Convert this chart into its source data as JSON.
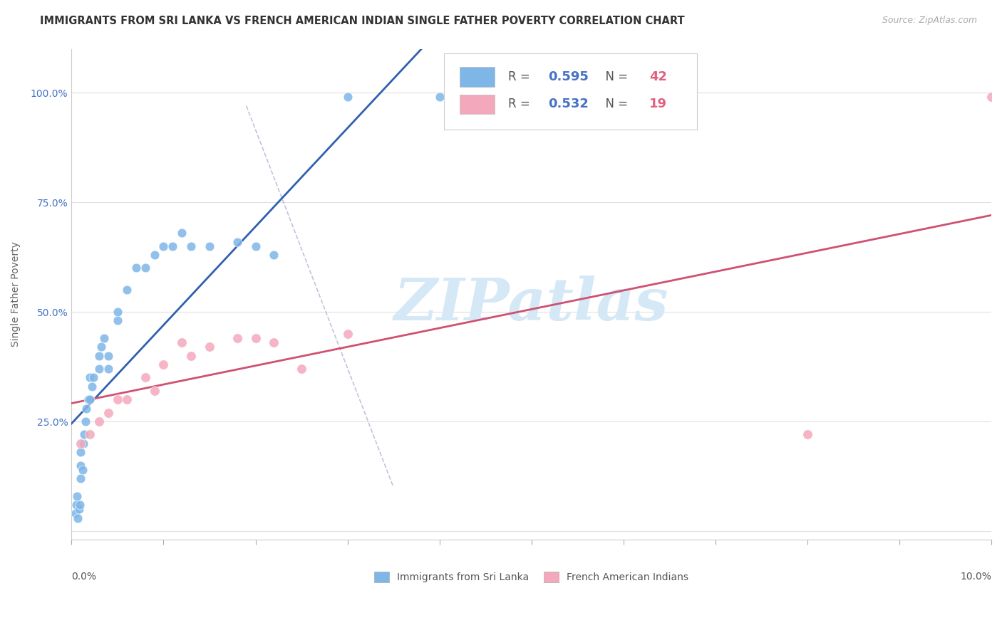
{
  "title": "IMMIGRANTS FROM SRI LANKA VS FRENCH AMERICAN INDIAN SINGLE FATHER POVERTY CORRELATION CHART",
  "source": "Source: ZipAtlas.com",
  "ylabel": "Single Father Poverty",
  "xlim": [
    0.0,
    0.1
  ],
  "ylim": [
    -0.02,
    1.1
  ],
  "blue_R": 0.595,
  "blue_N": 42,
  "pink_R": 0.532,
  "pink_N": 19,
  "blue_color": "#7EB6E8",
  "pink_color": "#F4A8BC",
  "blue_trend_color": "#3060b0",
  "pink_trend_color": "#d05070",
  "blue_label": "Immigrants from Sri Lanka",
  "pink_label": "French American Indians",
  "legend_value_color": "#4472c4",
  "legend_n_color": "#e06080",
  "watermark": "ZIPatlas",
  "watermark_color": "#d5e8f5",
  "background_color": "#ffffff",
  "grid_color": "#e0e0e0",
  "blue_scatter_x": [
    0.0004,
    0.0005,
    0.0006,
    0.0007,
    0.0008,
    0.0009,
    0.001,
    0.001,
    0.001,
    0.0012,
    0.0013,
    0.0014,
    0.0015,
    0.0016,
    0.0018,
    0.002,
    0.002,
    0.0022,
    0.0024,
    0.003,
    0.003,
    0.0032,
    0.0035,
    0.004,
    0.004,
    0.005,
    0.005,
    0.006,
    0.007,
    0.008,
    0.009,
    0.01,
    0.011,
    0.012,
    0.013,
    0.015,
    0.018,
    0.02,
    0.022,
    0.03,
    0.04,
    0.041
  ],
  "blue_scatter_y": [
    0.04,
    0.06,
    0.08,
    0.03,
    0.05,
    0.06,
    0.12,
    0.15,
    0.18,
    0.14,
    0.2,
    0.22,
    0.25,
    0.28,
    0.3,
    0.3,
    0.35,
    0.33,
    0.35,
    0.37,
    0.4,
    0.42,
    0.44,
    0.37,
    0.4,
    0.48,
    0.5,
    0.55,
    0.6,
    0.6,
    0.63,
    0.65,
    0.65,
    0.68,
    0.65,
    0.65,
    0.66,
    0.65,
    0.63,
    0.99,
    0.99,
    0.97
  ],
  "pink_scatter_x": [
    0.001,
    0.002,
    0.003,
    0.004,
    0.005,
    0.006,
    0.008,
    0.009,
    0.01,
    0.012,
    0.013,
    0.015,
    0.018,
    0.02,
    0.022,
    0.025,
    0.03,
    0.08,
    0.1
  ],
  "pink_scatter_y": [
    0.2,
    0.22,
    0.25,
    0.27,
    0.3,
    0.3,
    0.35,
    0.32,
    0.38,
    0.43,
    0.4,
    0.42,
    0.44,
    0.44,
    0.43,
    0.37,
    0.45,
    0.22,
    0.99
  ],
  "ref_line_x": [
    0.019,
    0.035
  ],
  "ref_line_y": [
    0.97,
    0.1
  ]
}
